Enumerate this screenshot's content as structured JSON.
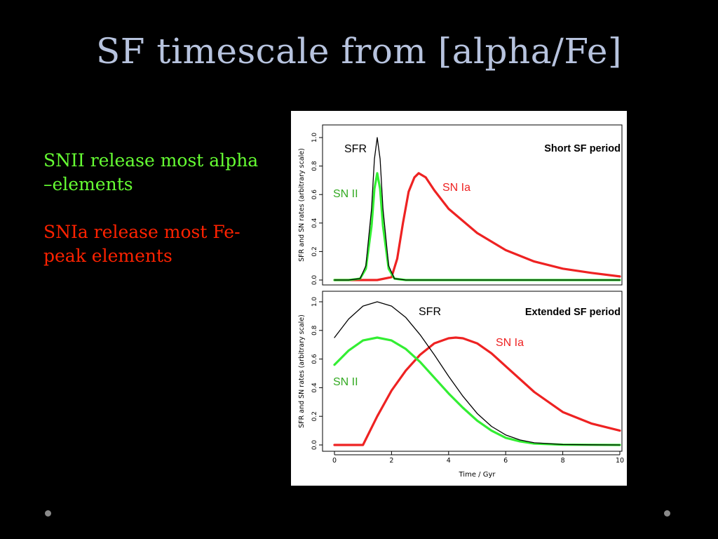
{
  "slide": {
    "title": "SF timescale from [alpha/Fe]",
    "bullets": [
      {
        "text": "SNII release most alpha –elements",
        "color": "#66ff33"
      },
      {
        "text": "SNIa release most Fe-peak elements",
        "color": "#ff2200"
      }
    ]
  },
  "chart_data": [
    {
      "type": "line",
      "title": "Short SF period",
      "xlabel": "",
      "ylabel": "SFR and SN rates (arbitrary scale)",
      "xlim": [
        0,
        10
      ],
      "ylim": [
        0,
        1.0
      ],
      "yticks": [
        "0.0",
        "0.2",
        "0.4",
        "0.6",
        "0.8",
        "1.0"
      ],
      "series": [
        {
          "name": "SFR",
          "color": "#000000",
          "x": [
            0,
            0.5,
            0.9,
            1.1,
            1.3,
            1.4,
            1.5,
            1.6,
            1.7,
            1.9,
            2.1,
            2.5,
            3,
            10
          ],
          "y": [
            0,
            0,
            0.01,
            0.1,
            0.5,
            0.85,
            1.0,
            0.85,
            0.5,
            0.1,
            0.01,
            0,
            0,
            0
          ]
        },
        {
          "name": "SN II",
          "color": "#33ee33",
          "x": [
            0,
            0.5,
            0.9,
            1.1,
            1.3,
            1.4,
            1.5,
            1.6,
            1.7,
            1.9,
            2.1,
            2.5,
            3,
            10
          ],
          "y": [
            0,
            0,
            0.01,
            0.08,
            0.38,
            0.64,
            0.75,
            0.64,
            0.38,
            0.08,
            0.01,
            0,
            0,
            0
          ]
        },
        {
          "name": "SN Ia",
          "color": "#ee2222",
          "x": [
            0,
            1.5,
            2.0,
            2.2,
            2.4,
            2.6,
            2.8,
            2.95,
            3.2,
            3.5,
            4,
            5,
            6,
            7,
            8,
            9,
            10
          ],
          "y": [
            0,
            0,
            0.02,
            0.15,
            0.4,
            0.62,
            0.72,
            0.75,
            0.72,
            0.63,
            0.5,
            0.33,
            0.21,
            0.13,
            0.08,
            0.05,
            0.025
          ]
        }
      ],
      "annotations": [
        {
          "text": "SFR",
          "color": "#000000"
        },
        {
          "text": "SN II",
          "color": "#33aa22"
        },
        {
          "text": "SN Ia",
          "color": "#ee2222"
        }
      ]
    },
    {
      "type": "line",
      "title": "Extended SF period",
      "xlabel": "Time / Gyr",
      "ylabel": "SFR and SN rates (arbitrary scale)",
      "xlim": [
        0,
        10
      ],
      "ylim": [
        0,
        1.0
      ],
      "xticks": [
        "0",
        "2",
        "4",
        "6",
        "8",
        "10"
      ],
      "yticks": [
        "0.0",
        "0.2",
        "0.4",
        "0.6",
        "0.8",
        "1.0"
      ],
      "series": [
        {
          "name": "SFR",
          "color": "#000000",
          "x": [
            0,
            0.5,
            1.0,
            1.5,
            2.0,
            2.5,
            3.0,
            3.5,
            4.0,
            4.5,
            5.0,
            5.5,
            6.0,
            6.5,
            7.0,
            8.0,
            9.0,
            10
          ],
          "y": [
            0.75,
            0.88,
            0.97,
            1.0,
            0.97,
            0.89,
            0.77,
            0.63,
            0.48,
            0.34,
            0.22,
            0.13,
            0.07,
            0.035,
            0.015,
            0.003,
            0.001,
            0
          ]
        },
        {
          "name": "SN II",
          "color": "#33ee33",
          "x": [
            0,
            0.5,
            1.0,
            1.5,
            2.0,
            2.5,
            3.0,
            3.5,
            4.0,
            4.5,
            5.0,
            5.5,
            6.0,
            6.5,
            7.0,
            8.0,
            9.0,
            10
          ],
          "y": [
            0.56,
            0.66,
            0.73,
            0.75,
            0.73,
            0.67,
            0.58,
            0.47,
            0.36,
            0.26,
            0.17,
            0.1,
            0.05,
            0.025,
            0.01,
            0.002,
            0.001,
            0
          ]
        },
        {
          "name": "SN Ia",
          "color": "#ee2222",
          "x": [
            0,
            1.0,
            1.5,
            2.0,
            2.5,
            3.0,
            3.5,
            4.0,
            4.25,
            4.5,
            5.0,
            5.5,
            6.0,
            7.0,
            8.0,
            9.0,
            10
          ],
          "y": [
            0,
            0,
            0.2,
            0.38,
            0.52,
            0.63,
            0.71,
            0.745,
            0.75,
            0.745,
            0.71,
            0.64,
            0.55,
            0.37,
            0.23,
            0.15,
            0.1
          ]
        }
      ],
      "annotations": [
        {
          "text": "SFR",
          "color": "#000000"
        },
        {
          "text": "SN II",
          "color": "#33aa22"
        },
        {
          "text": "SN Ia",
          "color": "#ee2222"
        }
      ]
    }
  ],
  "colors": {
    "background": "#000000",
    "title": "#b7c3de"
  }
}
